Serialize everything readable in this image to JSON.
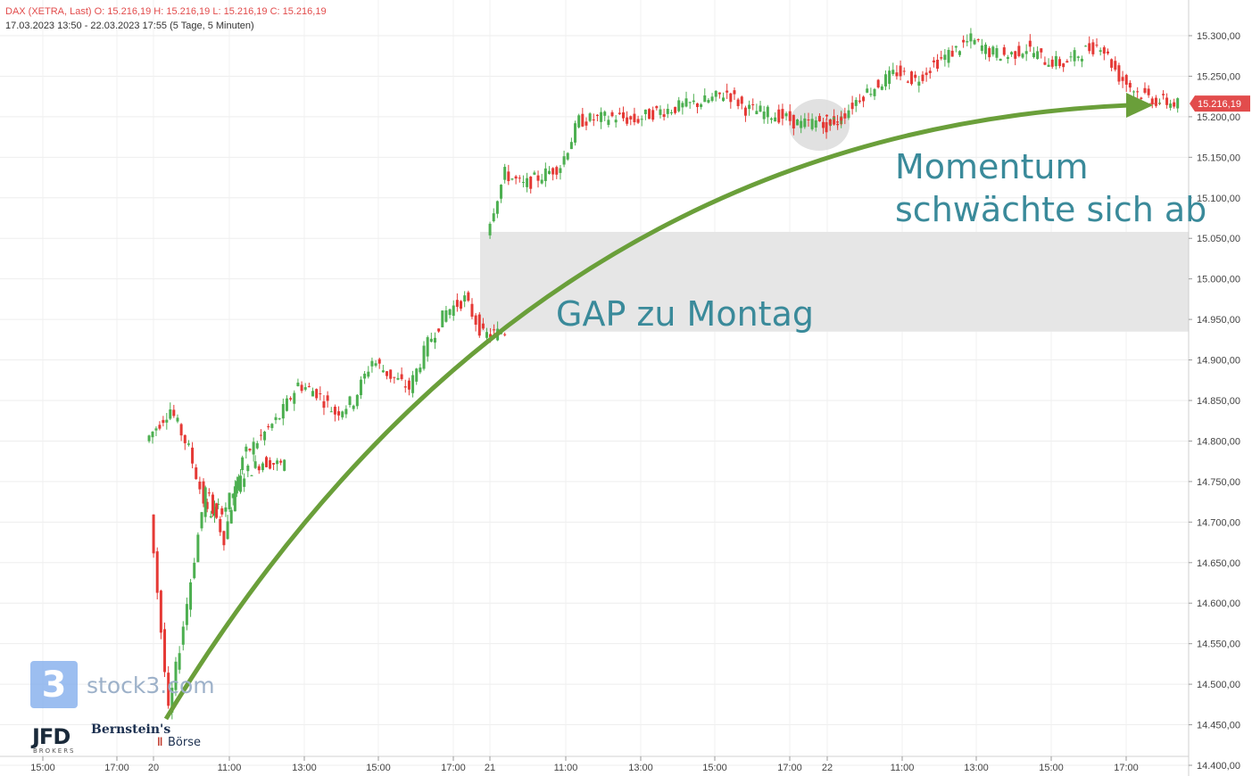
{
  "header": {
    "line1": "DAX (XETRA, Last)  O: 15.216,19  H: 15.216,19  L: 15.216,19  C: 15.216,19",
    "line2": "17.03.2023 13:50 - 22.03.2023 17:55   (5 Tage, 5 Minuten)"
  },
  "annotations": {
    "gap": "GAP zu Montag",
    "momentum_line1": "Momentum",
    "momentum_line2": "schwächte sich ab"
  },
  "logos": {
    "stock3_mark": "3",
    "stock3": "stock3.com",
    "jfd": "JFD",
    "jfd_sub": "BROKERS",
    "bernstein": "Bernstein's",
    "boerse": "Börse"
  },
  "colors": {
    "up": "#4caf50",
    "down": "#e53935",
    "annotation_arrow": "#6a9f3a",
    "annotation_text": "#3a8a9a",
    "gap_zone": "#e6e6e6",
    "price_tag": "#e24c4c"
  },
  "chart_data": {
    "type": "candlestick",
    "instrument": "DAX (XETRA, Last)",
    "last_price_label": "15.216,19",
    "last_price": 15216.19,
    "ylim": [
      14400,
      15300
    ],
    "y_ticks": [
      14400,
      14450,
      14500,
      14550,
      14600,
      14650,
      14700,
      14750,
      14800,
      14850,
      14900,
      14950,
      15000,
      15050,
      15100,
      15150,
      15200,
      15250,
      15300
    ],
    "y_tick_labels": [
      "14.400,00",
      "14.450,00",
      "14.500,00",
      "14.550,00",
      "14.600,00",
      "14.650,00",
      "14.700,00",
      "14.750,00",
      "14.800,00",
      "14.850,00",
      "14.900,00",
      "14.950,00",
      "15.000,00",
      "15.050,00",
      "15.100,00",
      "15.150,00",
      "15.200,00",
      "15.250,00",
      "15.300,00"
    ],
    "x_tick_labels": [
      "15:00",
      "17:00",
      "20",
      "11:00",
      "13:00",
      "15:00",
      "17:00",
      "21",
      "11:00",
      "13:00",
      "15:00",
      "17:00",
      "22",
      "11:00",
      "13:00",
      "15:00",
      "17:00"
    ],
    "gap_zone": {
      "label": "GAP zu Montag",
      "from": 14935,
      "to": 15058
    },
    "price_path": [
      {
        "t": "17.03 13:50",
        "y": 14800
      },
      {
        "t": "17.03 14:30",
        "y": 14840
      },
      {
        "t": "17.03 15:00",
        "y": 14790
      },
      {
        "t": "17.03 15:30",
        "y": 14710
      },
      {
        "t": "17.03 16:00",
        "y": 14720
      },
      {
        "t": "17.03 16:30",
        "y": 14760
      },
      {
        "t": "17.03 17:00",
        "y": 14775
      },
      {
        "t": "17.03 17:35",
        "y": 14770
      },
      {
        "t": "20.03 08:00",
        "y": 14715
      },
      {
        "t": "20.03 08:30",
        "y": 14465
      },
      {
        "t": "20.03 09:00",
        "y": 14600
      },
      {
        "t": "20.03 09:30",
        "y": 14740
      },
      {
        "t": "20.03 10:00",
        "y": 14680
      },
      {
        "t": "20.03 10:30",
        "y": 14780
      },
      {
        "t": "20.03 11:30",
        "y": 14830
      },
      {
        "t": "20.03 12:00",
        "y": 14870
      },
      {
        "t": "20.03 12:30",
        "y": 14860
      },
      {
        "t": "20.03 13:00",
        "y": 14835
      },
      {
        "t": "20.03 13:30",
        "y": 14850
      },
      {
        "t": "20.03 14:00",
        "y": 14900
      },
      {
        "t": "20.03 14:30",
        "y": 14880
      },
      {
        "t": "20.03 15:00",
        "y": 14865
      },
      {
        "t": "20.03 15:30",
        "y": 14920
      },
      {
        "t": "20.03 16:00",
        "y": 14960
      },
      {
        "t": "20.03 16:30",
        "y": 14975
      },
      {
        "t": "20.03 17:00",
        "y": 14930
      },
      {
        "t": "20.03 17:35",
        "y": 14935
      },
      {
        "t": "21.03 08:00",
        "y": 15060
      },
      {
        "t": "21.03 08:30",
        "y": 15130
      },
      {
        "t": "21.03 09:00",
        "y": 15115
      },
      {
        "t": "21.03 10:00",
        "y": 15140
      },
      {
        "t": "21.03 10:30",
        "y": 15195
      },
      {
        "t": "21.03 11:30",
        "y": 15200
      },
      {
        "t": "21.03 12:00",
        "y": 15195
      },
      {
        "t": "21.03 12:30",
        "y": 15205
      },
      {
        "t": "21.03 13:00",
        "y": 15210
      },
      {
        "t": "21.03 14:00",
        "y": 15220
      },
      {
        "t": "21.03 14:30",
        "y": 15230
      },
      {
        "t": "21.03 15:00",
        "y": 15210
      },
      {
        "t": "21.03 15:30",
        "y": 15205
      },
      {
        "t": "21.03 16:00",
        "y": 15200
      },
      {
        "t": "21.03 16:30",
        "y": 15190
      },
      {
        "t": "21.03 17:00",
        "y": 15195
      },
      {
        "t": "21.03 17:35",
        "y": 15195
      },
      {
        "t": "22.03 08:00",
        "y": 15185
      },
      {
        "t": "22.03 08:30",
        "y": 15200
      },
      {
        "t": "22.03 09:00",
        "y": 15225
      },
      {
        "t": "22.03 10:00",
        "y": 15255
      },
      {
        "t": "22.03 10:30",
        "y": 15245
      },
      {
        "t": "22.03 11:00",
        "y": 15265
      },
      {
        "t": "22.03 12:00",
        "y": 15295
      },
      {
        "t": "22.03 12:30",
        "y": 15280
      },
      {
        "t": "22.03 13:00",
        "y": 15275
      },
      {
        "t": "22.03 13:30",
        "y": 15285
      },
      {
        "t": "22.03 14:00",
        "y": 15270
      },
      {
        "t": "22.03 14:30",
        "y": 15265
      },
      {
        "t": "22.03 15:00",
        "y": 15280
      },
      {
        "t": "22.03 15:30",
        "y": 15290
      },
      {
        "t": "22.03 16:00",
        "y": 15250
      },
      {
        "t": "22.03 16:30",
        "y": 15230
      },
      {
        "t": "22.03 17:00",
        "y": 15220
      },
      {
        "t": "22.03 17:35",
        "y": 15216
      }
    ]
  }
}
